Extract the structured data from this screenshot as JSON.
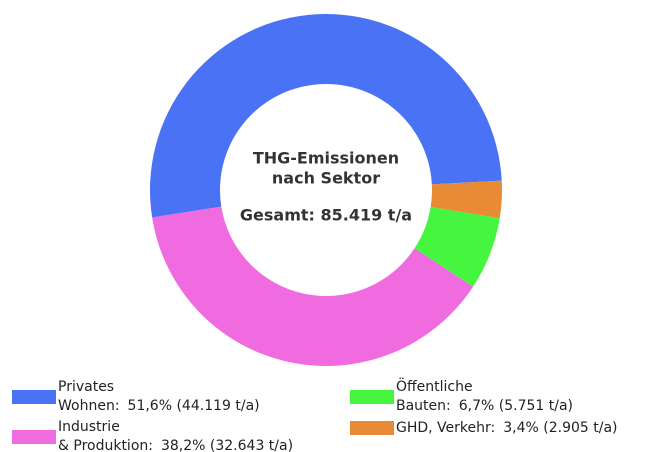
{
  "chart_data": {
    "type": "donut",
    "title_lines": [
      "THG-Emissionen",
      "nach Sektor"
    ],
    "subtitle": "Gesamt:  85.419 t/a",
    "series": [
      {
        "name_lines": [
          "Privates",
          "Wohnen:"
        ],
        "color": "#4a72f5",
        "values": [
          51.6
        ],
        "value_labels": [
          "51,6% (44.119 t/a)"
        ]
      },
      {
        "name_lines": [
          "GHD, Verkehr:"
        ],
        "color": "#e98a35",
        "values": [
          3.4
        ],
        "value_labels": [
          "3,4% (2.905 t/a)"
        ]
      },
      {
        "name_lines": [
          "Öffentliche",
          "Bauten:"
        ],
        "color": "#45f53f",
        "values": [
          6.7
        ],
        "value_labels": [
          "6,7% (5.751 t/a)"
        ]
      },
      {
        "name_lines": [
          "Industrie",
          "& Produktion:"
        ],
        "color": "#f06ae0",
        "values": [
          38.2
        ],
        "value_labels": [
          "38,2% (32.643 t/a)"
        ]
      }
    ]
  }
}
